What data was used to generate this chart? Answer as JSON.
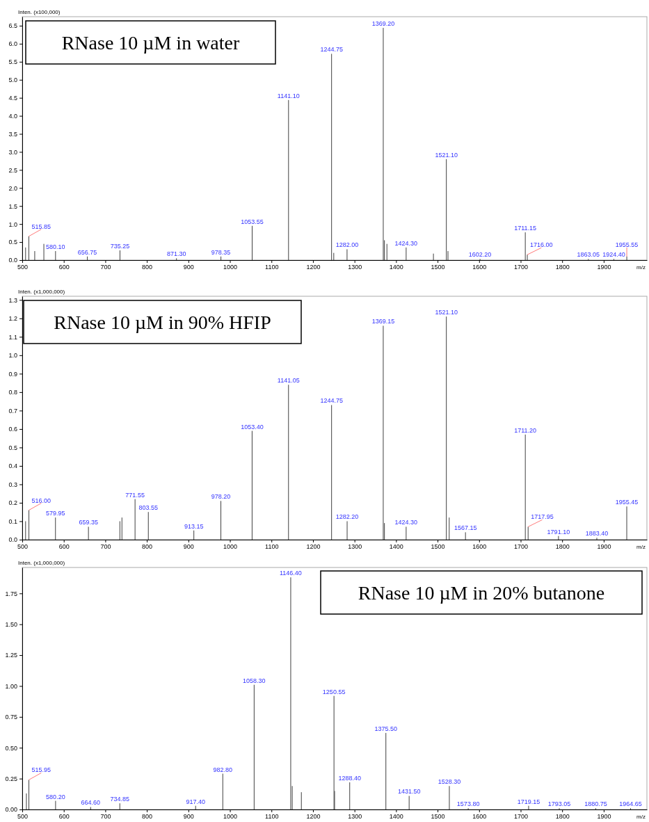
{
  "chart_data": [
    {
      "type": "bar",
      "title": "RNase 10 µM in water",
      "ylabel": "Inten. (x100,000)",
      "xlabel": "m/z",
      "xlim": [
        500,
        2004
      ],
      "xticks": [
        500,
        600,
        700,
        800,
        900,
        1000,
        1100,
        1200,
        1300,
        1400,
        1500,
        1600,
        1700,
        1800,
        1900
      ],
      "ylim": [
        0,
        6.75
      ],
      "yticks": [
        {
          "value": 0,
          "label": "0.0"
        },
        {
          "value": 0.5,
          "label": "0.5"
        },
        {
          "value": 1,
          "label": "1.0"
        },
        {
          "value": 1.5,
          "label": "1.5"
        },
        {
          "value": 2,
          "label": "2.0"
        },
        {
          "value": 2.5,
          "label": "2.5"
        },
        {
          "value": 3,
          "label": "3.0"
        },
        {
          "value": 3.5,
          "label": "3.5"
        },
        {
          "value": 4,
          "label": "4.0"
        },
        {
          "value": 4.5,
          "label": "4.5"
        },
        {
          "value": 5,
          "label": "5.0"
        },
        {
          "value": 5.5,
          "label": "5.5"
        },
        {
          "value": 6,
          "label": "6.0"
        },
        {
          "value": 6.5,
          "label": "6.5"
        }
      ],
      "series": [
        {
          "color": "#404040",
          "x": [
            508,
            515.85,
            530,
            552,
            580.1,
            656.75,
            735.25,
            871.3,
            978.35,
            1053.55,
            1141.1,
            1244.75,
            1250,
            1282,
            1369.2,
            1372,
            1378,
            1424.3,
            1490,
            1521.1,
            1525,
            1602.2,
            1711.15,
            1716,
            1863.05,
            1924.4,
            1955.55
          ],
          "values": [
            0.35,
            0.66,
            0.25,
            0.45,
            0.25,
            0.1,
            0.27,
            0.05,
            0.1,
            0.95,
            4.44,
            5.72,
            0.2,
            0.3,
            6.44,
            0.55,
            0.45,
            0.35,
            0.18,
            2.8,
            0.25,
            0.03,
            0.77,
            0.15,
            0.03,
            0.03,
            0.1
          ]
        }
      ],
      "annotations": [
        {
          "text": "515.85",
          "x": 515.85,
          "y": 0.66
        },
        {
          "text": "580.10",
          "x": 580.1,
          "y": 0.25
        },
        {
          "text": "656.75",
          "x": 656.75,
          "y": 0.1
        },
        {
          "text": "735.25",
          "x": 735.25,
          "y": 0.27
        },
        {
          "text": "871.30",
          "x": 871.3,
          "y": 0.05
        },
        {
          "text": "978.35",
          "x": 978.35,
          "y": 0.1
        },
        {
          "text": "1053.55",
          "x": 1053.55,
          "y": 0.95
        },
        {
          "text": "1141.10",
          "x": 1141.1,
          "y": 4.44
        },
        {
          "text": "1244.75",
          "x": 1244.75,
          "y": 5.72
        },
        {
          "text": "1282.00",
          "x": 1282,
          "y": 0.3
        },
        {
          "text": "1369.20",
          "x": 1369.2,
          "y": 6.44
        },
        {
          "text": "1424.30",
          "x": 1424.3,
          "y": 0.35
        },
        {
          "text": "1521.10",
          "x": 1521.1,
          "y": 2.8
        },
        {
          "text": "1602.20",
          "x": 1602.2,
          "y": 0.03
        },
        {
          "text": "1711.15",
          "x": 1711.15,
          "y": 0.77
        },
        {
          "text": "1716.00",
          "x": 1716,
          "y": 0.15
        },
        {
          "text": "1863.05",
          "x": 1863.05,
          "y": 0.03
        },
        {
          "text": "1924.40",
          "x": 1924.4,
          "y": 0.03
        },
        {
          "text": "1955.55",
          "x": 1955.55,
          "y": 0.1
        }
      ]
    },
    {
      "type": "bar",
      "title": "RNase 10 µM in 90% HFIP",
      "ylabel": "Inten. (x1,000,000)",
      "xlabel": "m/z",
      "xlim": [
        500,
        2004
      ],
      "xticks": [
        500,
        600,
        700,
        800,
        900,
        1000,
        1100,
        1200,
        1300,
        1400,
        1500,
        1600,
        1700,
        1800,
        1900
      ],
      "ylim": [
        0,
        1.32
      ],
      "yticks": [
        {
          "value": 0,
          "label": "0.0"
        },
        {
          "value": 0.1,
          "label": "0.1"
        },
        {
          "value": 0.2,
          "label": "0.2"
        },
        {
          "value": 0.3,
          "label": "0.3"
        },
        {
          "value": 0.4,
          "label": "0.4"
        },
        {
          "value": 0.5,
          "label": "0.5"
        },
        {
          "value": 0.6,
          "label": "0.6"
        },
        {
          "value": 0.7,
          "label": "0.7"
        },
        {
          "value": 0.8,
          "label": "0.8"
        },
        {
          "value": 0.9,
          "label": "0.9"
        },
        {
          "value": 1,
          "label": "1.0"
        },
        {
          "value": 1.1,
          "label": "1.1"
        },
        {
          "value": 1.2,
          "label": "1.2"
        },
        {
          "value": 1.3,
          "label": "1.3"
        }
      ],
      "series": [
        {
          "color": "#404040",
          "x": [
            508,
            516,
            579.95,
            659.35,
            735,
            740,
            771.55,
            803.55,
            913.15,
            978.2,
            1053.4,
            1141.05,
            1244.75,
            1282.2,
            1369.15,
            1372,
            1424.3,
            1521.1,
            1528,
            1567.15,
            1711.2,
            1717.95,
            1791.1,
            1883.4,
            1955.45
          ],
          "values": [
            0.1,
            0.16,
            0.12,
            0.07,
            0.1,
            0.12,
            0.22,
            0.15,
            0.05,
            0.21,
            0.59,
            0.84,
            0.73,
            0.1,
            1.16,
            0.09,
            0.07,
            1.21,
            0.12,
            0.04,
            0.57,
            0.07,
            0.02,
            0.01,
            0.18
          ]
        }
      ],
      "annotations": [
        {
          "text": "516.00",
          "x": 516,
          "y": 0.16
        },
        {
          "text": "579.95",
          "x": 579.95,
          "y": 0.12
        },
        {
          "text": "659.35",
          "x": 659.35,
          "y": 0.07
        },
        {
          "text": "771.55",
          "x": 771.55,
          "y": 0.22
        },
        {
          "text": "803.55",
          "x": 803.55,
          "y": 0.15
        },
        {
          "text": "913.15",
          "x": 913.15,
          "y": 0.05
        },
        {
          "text": "978.20",
          "x": 978.2,
          "y": 0.21
        },
        {
          "text": "1053.40",
          "x": 1053.4,
          "y": 0.59
        },
        {
          "text": "1141.05",
          "x": 1141.05,
          "y": 0.84
        },
        {
          "text": "1244.75",
          "x": 1244.75,
          "y": 0.73
        },
        {
          "text": "1282.20",
          "x": 1282.2,
          "y": 0.1
        },
        {
          "text": "1369.15",
          "x": 1369.15,
          "y": 1.16
        },
        {
          "text": "1424.30",
          "x": 1424.3,
          "y": 0.07
        },
        {
          "text": "1521.10",
          "x": 1521.1,
          "y": 1.21
        },
        {
          "text": "1567.15",
          "x": 1567.15,
          "y": 0.04
        },
        {
          "text": "1711.20",
          "x": 1711.2,
          "y": 0.57
        },
        {
          "text": "1717.95",
          "x": 1717.95,
          "y": 0.07
        },
        {
          "text": "1791.10",
          "x": 1791.1,
          "y": 0.02
        },
        {
          "text": "1883.40",
          "x": 1883.4,
          "y": 0.01
        },
        {
          "text": "1955.45",
          "x": 1955.45,
          "y": 0.18
        }
      ]
    },
    {
      "type": "bar",
      "title": "RNase 10 µM in 20% butanone",
      "ylabel": "Inten. (x1,000,000)",
      "xlabel": "m/z",
      "xlim": [
        500,
        2004
      ],
      "xticks": [
        500,
        600,
        700,
        800,
        900,
        1000,
        1100,
        1200,
        1300,
        1400,
        1500,
        1600,
        1700,
        1800,
        1900
      ],
      "ylim": [
        0,
        1.96
      ],
      "yticks": [
        {
          "value": 0,
          "label": "0.00"
        },
        {
          "value": 0.25,
          "label": "0.25"
        },
        {
          "value": 0.5,
          "label": "0.50"
        },
        {
          "value": 0.75,
          "label": "0.75"
        },
        {
          "value": 1,
          "label": "1.00"
        },
        {
          "value": 1.25,
          "label": "1.25"
        },
        {
          "value": 1.5,
          "label": "1.50"
        },
        {
          "value": 1.75,
          "label": "1.75"
        }
      ],
      "series": [
        {
          "color": "#404040",
          "x": [
            510,
            515.95,
            580.2,
            664.6,
            734.85,
            917.4,
            982.8,
            1058.3,
            1146.4,
            1150,
            1172,
            1250.55,
            1252,
            1288.4,
            1375.5,
            1431.5,
            1528.3,
            1573.8,
            1719.15,
            1793.05,
            1880.75,
            1964.65
          ],
          "values": [
            0.13,
            0.24,
            0.07,
            0.02,
            0.05,
            0.03,
            0.29,
            1.01,
            1.88,
            0.19,
            0.14,
            0.92,
            0.15,
            0.22,
            0.62,
            0.11,
            0.19,
            0.01,
            0.03,
            0.01,
            0.01,
            0.01
          ]
        }
      ],
      "annotations": [
        {
          "text": "515.95",
          "x": 515.95,
          "y": 0.24
        },
        {
          "text": "580.20",
          "x": 580.2,
          "y": 0.07
        },
        {
          "text": "664.60",
          "x": 664.6,
          "y": 0.02
        },
        {
          "text": "734.85",
          "x": 734.85,
          "y": 0.05
        },
        {
          "text": "917.40",
          "x": 917.4,
          "y": 0.03
        },
        {
          "text": "982.80",
          "x": 982.8,
          "y": 0.29
        },
        {
          "text": "1058.30",
          "x": 1058.3,
          "y": 1.01
        },
        {
          "text": "1146.40",
          "x": 1146.4,
          "y": 1.88
        },
        {
          "text": "1250.55",
          "x": 1250.55,
          "y": 0.92
        },
        {
          "text": "1288.40",
          "x": 1288.4,
          "y": 0.22
        },
        {
          "text": "1375.50",
          "x": 1375.5,
          "y": 0.62
        },
        {
          "text": "1431.50",
          "x": 1431.5,
          "y": 0.11
        },
        {
          "text": "1528.30",
          "x": 1528.3,
          "y": 0.19
        },
        {
          "text": "1573.80",
          "x": 1573.8,
          "y": 0.01
        },
        {
          "text": "1719.15",
          "x": 1719.15,
          "y": 0.03
        },
        {
          "text": "1793.05",
          "x": 1793.05,
          "y": 0.01
        },
        {
          "text": "1880.75",
          "x": 1880.75,
          "y": 0.01
        },
        {
          "text": "1964.65",
          "x": 1964.65,
          "y": 0.01
        }
      ]
    }
  ]
}
